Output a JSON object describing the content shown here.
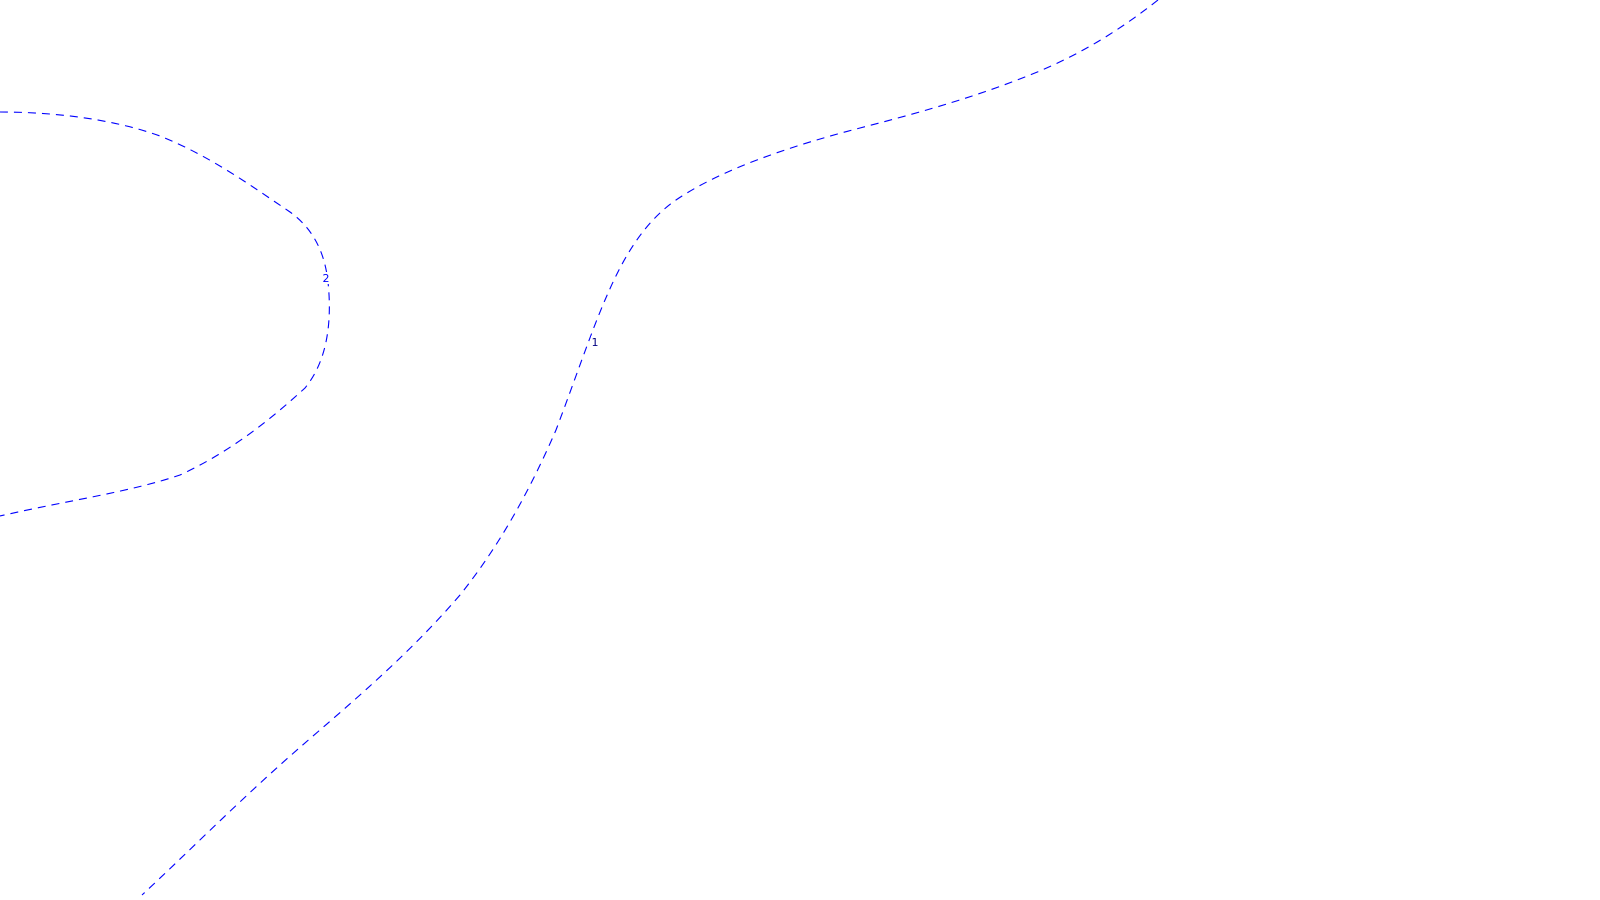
{
  "map": {
    "background_color": "#ffffff",
    "contours": [
      {
        "id": "contour-1",
        "label": "1",
        "stroke_color": "#0000ff",
        "label_color": "#000080"
      },
      {
        "id": "contour-2",
        "label": "2",
        "stroke_color": "#0000ff",
        "label_color": "#0000ff"
      }
    ]
  }
}
